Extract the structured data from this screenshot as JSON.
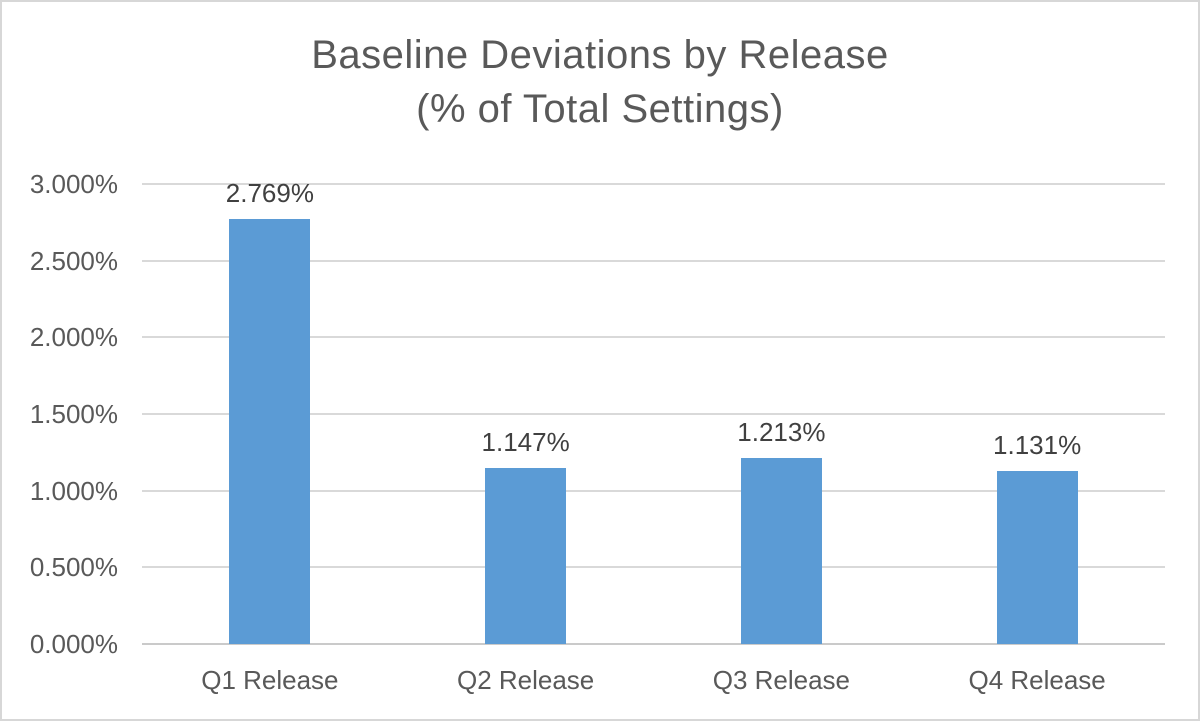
{
  "chart_data": {
    "type": "bar",
    "title": "Baseline Deviations by Release",
    "subtitle": "(% of Total Settings)",
    "categories": [
      "Q1 Release",
      "Q2 Release",
      "Q3 Release",
      "Q4 Release"
    ],
    "values": [
      2.769,
      1.147,
      1.213,
      1.131
    ],
    "value_labels": [
      "2.769%",
      "1.147%",
      "1.213%",
      "1.131%"
    ],
    "y_ticks": [
      {
        "value": 3.0,
        "label": "3.000%"
      },
      {
        "value": 2.5,
        "label": "2.500%"
      },
      {
        "value": 2.0,
        "label": "2.000%"
      },
      {
        "value": 1.5,
        "label": "1.500%"
      },
      {
        "value": 1.0,
        "label": "1.000%"
      },
      {
        "value": 0.5,
        "label": "0.500%"
      },
      {
        "value": 0.0,
        "label": "0.000%"
      }
    ],
    "ylim": [
      0,
      3
    ],
    "grid": true,
    "legend_position": "none",
    "colors": {
      "bar": "#5B9BD5",
      "gridline": "#D9D9D9",
      "axis_line": "#CACACA",
      "axis_text": "#595959",
      "title_text": "#595959",
      "data_label_text": "#404040",
      "frame_border": "#D7D7D7",
      "background": "#FFFFFF"
    }
  }
}
